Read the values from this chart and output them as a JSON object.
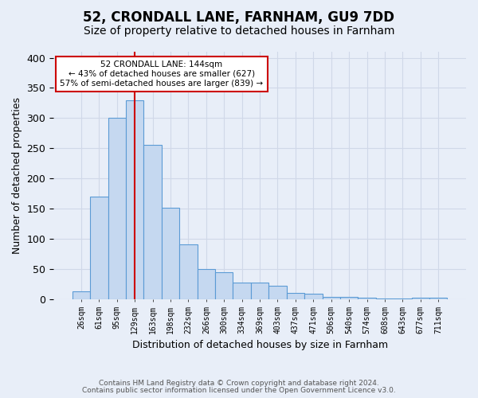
{
  "title": "52, CRONDALL LANE, FARNHAM, GU9 7DD",
  "subtitle": "Size of property relative to detached houses in Farnham",
  "xlabel": "Distribution of detached houses by size in Farnham",
  "ylabel": "Number of detached properties",
  "footer1": "Contains HM Land Registry data © Crown copyright and database right 2024.",
  "footer2": "Contains public sector information licensed under the Open Government Licence v3.0.",
  "bin_labels": [
    "26sqm",
    "61sqm",
    "95sqm",
    "129sqm",
    "163sqm",
    "198sqm",
    "232sqm",
    "266sqm",
    "300sqm",
    "334sqm",
    "369sqm",
    "403sqm",
    "437sqm",
    "471sqm",
    "506sqm",
    "540sqm",
    "574sqm",
    "608sqm",
    "643sqm",
    "677sqm",
    "711sqm"
  ],
  "bar_heights": [
    13,
    170,
    300,
    330,
    255,
    152,
    91,
    50,
    44,
    28,
    28,
    22,
    10,
    9,
    4,
    4,
    2,
    1,
    1,
    3,
    3
  ],
  "bar_color": "#c5d8f0",
  "bar_edge_color": "#5b9bd5",
  "grid_color": "#d0d8e8",
  "bg_color": "#e8eef8",
  "property_bin_index": 3,
  "annotation_line1": "52 CRONDALL LANE: 144sqm",
  "annotation_line2": "← 43% of detached houses are smaller (627)",
  "annotation_line3": "57% of semi-detached houses are larger (839) →",
  "annotation_box_color": "#ffffff",
  "annotation_box_edge": "#cc0000",
  "red_line_color": "#cc0000",
  "ylim": [
    0,
    410
  ],
  "yticks": [
    0,
    50,
    100,
    150,
    200,
    250,
    300,
    350,
    400
  ],
  "title_fontsize": 12,
  "subtitle_fontsize": 10,
  "footer_fontsize": 6.5
}
